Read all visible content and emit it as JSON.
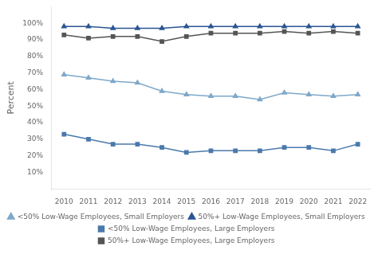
{
  "chart_data": {
    "type": "line",
    "y_label": "Percent",
    "x": [
      2010,
      2011,
      2012,
      2013,
      2014,
      2015,
      2016,
      2017,
      2018,
      2019,
      2020,
      2021,
      2022
    ],
    "series": [
      {
        "name": "<50% Low-Wage Employees, Small Employers",
        "color": "#7fa8c9",
        "marker": "triangle",
        "values": [
          69,
          67,
          65,
          64,
          59,
          57,
          56,
          56,
          54,
          58,
          57,
          56,
          57
        ]
      },
      {
        "name": "50%+ Low-Wage Employees, Small Employers",
        "color": "#2a5592",
        "marker": "triangle",
        "values": [
          98,
          98,
          97,
          97,
          97,
          98,
          98,
          98,
          98,
          98,
          98,
          98,
          98
        ]
      },
      {
        "name": "<50% Low-Wage Employees, Large Employers",
        "color": "#4a7aab",
        "marker": "square",
        "values": [
          33,
          30,
          27,
          27,
          25,
          22,
          23,
          23,
          23,
          25,
          25,
          23,
          27
        ]
      },
      {
        "name": "50%+ Low-Wage Employees, Large Employers",
        "color": "#555555",
        "marker": "square",
        "values": [
          93,
          91,
          92,
          92,
          89,
          92,
          94,
          94,
          94,
          95,
          94,
          95,
          94
        ]
      }
    ],
    "xlim": [
      2009.5,
      2022.5
    ],
    "xticks": [
      2010,
      2011,
      2012,
      2013,
      2014,
      2015,
      2016,
      2017,
      2018,
      2019,
      2020,
      2021,
      2022
    ],
    "ylim": [
      0,
      110
    ],
    "yticks": [
      {
        "value": 10,
        "label": "10%"
      },
      {
        "value": 20,
        "label": "20%"
      },
      {
        "value": 30,
        "label": "30%"
      },
      {
        "value": 40,
        "label": "40%"
      },
      {
        "value": 50,
        "label": "50%"
      },
      {
        "value": 60,
        "label": "60%"
      },
      {
        "value": 70,
        "label": "70%"
      },
      {
        "value": 80,
        "label": "80%"
      },
      {
        "value": 90,
        "label": "90%"
      },
      {
        "value": 100,
        "label": "100%"
      }
    ],
    "grid": false,
    "legend": "bottom"
  }
}
